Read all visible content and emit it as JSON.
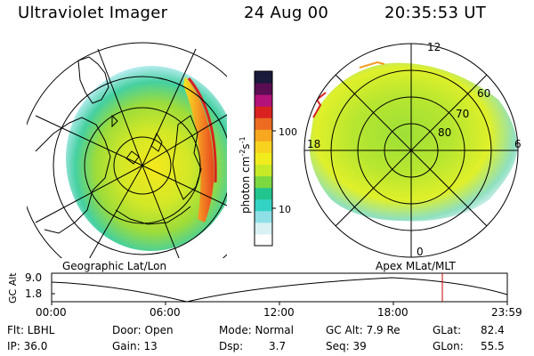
{
  "header": {
    "title": "Ultraviolet Imager",
    "date": "24 Aug 00",
    "time": "20:35:53 UT"
  },
  "colorbar": {
    "label": "photon cm",
    "label_sup1": "-2",
    "label_mid": "s",
    "label_sup2": "-1",
    "ticks": [
      "100",
      "10"
    ],
    "colors": [
      "#ffffff",
      "#d9f1f3",
      "#8fe0e6",
      "#34d2c5",
      "#23c58f",
      "#7cd840",
      "#c7ea27",
      "#f1ec1d",
      "#f7d320",
      "#f7a820",
      "#ec6b21",
      "#d9221f",
      "#b4127b",
      "#5a0d52",
      "#1a1a3a"
    ]
  },
  "left_panel": {
    "caption": "Geographic Lat/Lon"
  },
  "right_panel": {
    "caption": "Apex MLat/MLT",
    "mlt_labels": {
      "top": "12",
      "left": "18",
      "right": "6",
      "bottom": "0"
    },
    "mlat_labels": [
      "60",
      "70",
      "80"
    ]
  },
  "altitude_plot": {
    "ylabel": "GC Alt",
    "yticks": [
      "9.0",
      "1.8"
    ],
    "xticks": [
      "00:00",
      "06:00",
      "12:00",
      "18:00",
      "23:59"
    ],
    "marker_color": "#cc0000"
  },
  "info": {
    "flt": "Flt: LBHL",
    "ip": "IP: 36.0",
    "door": "Door: Open",
    "gain": "Gain: 13",
    "mode": "Mode: Normal",
    "dsp_label": "Dsp:",
    "dsp_value": "3.7",
    "gc_alt": "GC Alt: 7.9 Re",
    "seq": "Seq: 39",
    "glat_label": "GLat:",
    "glat_value": "82.4",
    "glon_label": "GLon:",
    "glon_value": "55.5"
  }
}
